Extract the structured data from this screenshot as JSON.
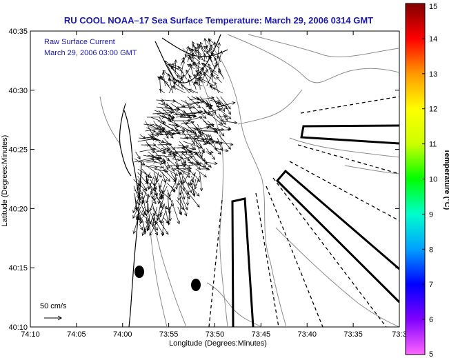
{
  "chart_data": {
    "type": "vector-field-map",
    "title": "RU COOL   NOAA–17  Sea Surface Temperature:  March 29, 2006 0314 GMT",
    "annotation_line1": "Raw Surface Current",
    "annotation_line2": "March 29, 2006 03:00 GMT",
    "xlabel": "Longitude (Degrees:Minutes)",
    "ylabel": "Latitude (Degrees:Minutes)",
    "x_ticks": [
      "74:10",
      "74:05",
      "74:00",
      "73:55",
      "73:50",
      "73:45",
      "73:40",
      "73:35",
      "73:3"
    ],
    "y_ticks": [
      "40:35",
      "40:30",
      "40:25",
      "40:20",
      "40:15",
      "40:10"
    ],
    "xlim": [
      -74.1667,
      -73.5
    ],
    "ylim": [
      40.1667,
      40.5833
    ],
    "colorbar": {
      "label": "Temperature (°C)",
      "ticks": [
        "15",
        "14",
        "13",
        "12",
        "11",
        "10",
        "9",
        "8",
        "7",
        "6",
        "5"
      ],
      "range": [
        5,
        15
      ],
      "colors": [
        "#ff66ff",
        "#8000ff",
        "#0000ff",
        "#00a0ff",
        "#00ffcc",
        "#00ff00",
        "#ccff00",
        "#ffff00",
        "#ff9900",
        "#ff0000",
        "#800000"
      ]
    },
    "scale_label": "50 cm/s",
    "grid": false,
    "legend": "none",
    "colors": {
      "title": "#1a1ab0",
      "coast": "#000000",
      "bathymetry": "#888888",
      "vectors": "#000000"
    }
  }
}
